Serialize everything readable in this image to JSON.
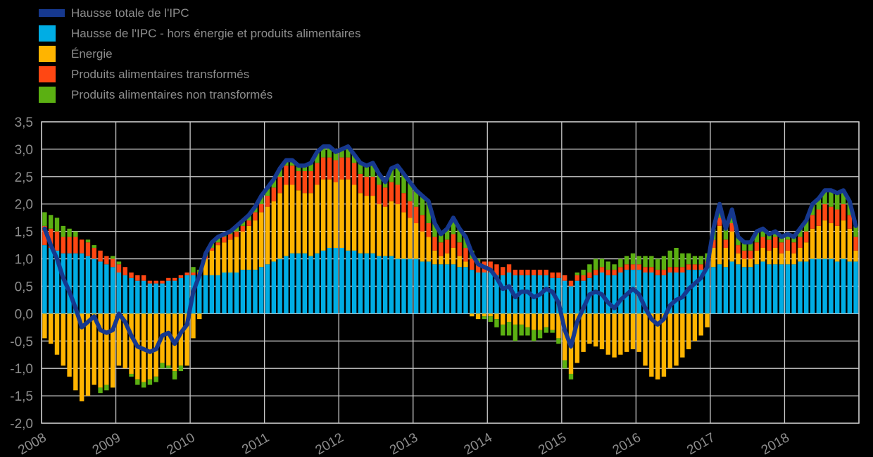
{
  "chart_data": {
    "type": "bar",
    "subtype": "stacked-bars-with-line-overlay",
    "title": "",
    "x_unit": "month",
    "x_range": [
      "2008-01",
      "2018-12"
    ],
    "x_tick_labels": [
      "2008",
      "2009",
      "2010",
      "2011",
      "2012",
      "2013",
      "2014",
      "2015",
      "2016",
      "2017",
      "2018"
    ],
    "y_tick_labels": [
      "3,5",
      "3,0",
      "2,5",
      "2,0",
      "1,5",
      "1,0",
      "0,5",
      "0,0",
      "-0,5",
      "-1,0",
      "-1,5",
      "-2,0"
    ],
    "y_tick_values": [
      3.5,
      3.0,
      2.5,
      2.0,
      1.5,
      1.0,
      0.5,
      0.0,
      -0.5,
      -1.0,
      -1.5,
      -2.0
    ],
    "ylim": [
      -2.0,
      3.5
    ],
    "grid": true,
    "legend_position": "top-left",
    "background": "#000000",
    "grid_color": "#c9c9c9",
    "text_color": "#8d8d8d",
    "series": [
      {
        "name": "Hausse totale de l'IPC",
        "type": "line",
        "color": "#16388E",
        "values": [
          1.55,
          1.25,
          1.0,
          0.65,
          0.4,
          0.1,
          -0.25,
          -0.15,
          -0.05,
          -0.3,
          -0.35,
          -0.3,
          0.0,
          -0.15,
          -0.4,
          -0.6,
          -0.65,
          -0.7,
          -0.65,
          -0.4,
          -0.35,
          -0.55,
          -0.35,
          -0.2,
          0.4,
          0.7,
          1.1,
          1.3,
          1.4,
          1.45,
          1.5,
          1.6,
          1.7,
          1.8,
          1.95,
          2.15,
          2.3,
          2.45,
          2.65,
          2.8,
          2.8,
          2.7,
          2.7,
          2.75,
          2.95,
          3.05,
          3.05,
          2.95,
          3.0,
          3.05,
          2.9,
          2.75,
          2.7,
          2.75,
          2.55,
          2.4,
          2.65,
          2.7,
          2.55,
          2.4,
          2.25,
          2.15,
          2.05,
          1.65,
          1.45,
          1.55,
          1.75,
          1.55,
          1.4,
          1.1,
          0.9,
          0.85,
          0.8,
          0.65,
          0.45,
          0.5,
          0.3,
          0.4,
          0.4,
          0.3,
          0.35,
          0.45,
          0.4,
          0.2,
          -0.3,
          -0.6,
          -0.15,
          0.1,
          0.35,
          0.4,
          0.35,
          0.2,
          0.1,
          0.25,
          0.35,
          0.45,
          0.35,
          0.1,
          -0.1,
          -0.2,
          -0.1,
          0.15,
          0.25,
          0.3,
          0.45,
          0.55,
          0.65,
          0.85,
          1.55,
          2.0,
          1.55,
          1.9,
          1.4,
          1.3,
          1.3,
          1.5,
          1.55,
          1.45,
          1.5,
          1.4,
          1.45,
          1.4,
          1.55,
          1.7,
          2.0,
          2.1,
          2.25,
          2.25,
          2.2,
          2.25,
          2.05,
          1.6
        ]
      },
      {
        "name": "Hausse de l'IPC - hors énergie et produits alimentaires",
        "type": "bar",
        "color": "#00ADE4",
        "values": [
          1.25,
          1.2,
          1.15,
          1.1,
          1.1,
          1.1,
          1.1,
          1.05,
          1.0,
          0.95,
          0.9,
          0.85,
          0.75,
          0.7,
          0.65,
          0.6,
          0.6,
          0.55,
          0.55,
          0.55,
          0.6,
          0.6,
          0.65,
          0.7,
          0.7,
          0.7,
          0.7,
          0.7,
          0.7,
          0.75,
          0.75,
          0.75,
          0.8,
          0.8,
          0.8,
          0.85,
          0.9,
          0.95,
          1.0,
          1.05,
          1.1,
          1.1,
          1.1,
          1.05,
          1.1,
          1.15,
          1.2,
          1.2,
          1.2,
          1.15,
          1.15,
          1.1,
          1.1,
          1.1,
          1.05,
          1.05,
          1.05,
          1.0,
          1.0,
          1.0,
          1.0,
          0.95,
          0.95,
          0.9,
          0.9,
          0.9,
          0.9,
          0.85,
          0.85,
          0.8,
          0.75,
          0.75,
          0.75,
          0.7,
          0.7,
          0.75,
          0.7,
          0.7,
          0.7,
          0.7,
          0.7,
          0.7,
          0.65,
          0.65,
          0.6,
          0.5,
          0.6,
          0.6,
          0.65,
          0.7,
          0.75,
          0.7,
          0.7,
          0.75,
          0.8,
          0.8,
          0.8,
          0.75,
          0.75,
          0.7,
          0.7,
          0.75,
          0.75,
          0.75,
          0.8,
          0.8,
          0.8,
          0.85,
          0.85,
          0.9,
          0.85,
          0.95,
          0.9,
          0.85,
          0.85,
          0.9,
          0.95,
          0.9,
          0.9,
          0.9,
          0.9,
          0.9,
          0.95,
          0.95,
          1.0,
          1.0,
          1.0,
          1.0,
          0.95,
          1.0,
          0.95,
          0.95
        ]
      },
      {
        "name": "Énergie",
        "type": "bar",
        "color": "#FFB400",
        "values": [
          -0.45,
          -0.55,
          -0.75,
          -0.95,
          -1.15,
          -1.4,
          -1.6,
          -1.5,
          -1.3,
          -1.35,
          -1.3,
          -1.35,
          -0.95,
          -1.0,
          -1.1,
          -1.2,
          -1.25,
          -1.2,
          -1.15,
          -0.9,
          -0.95,
          -1.05,
          -0.95,
          -0.95,
          -0.45,
          -0.1,
          0.3,
          0.45,
          0.55,
          0.55,
          0.6,
          0.65,
          0.7,
          0.8,
          0.9,
          1.0,
          1.05,
          1.1,
          1.2,
          1.3,
          1.25,
          1.15,
          1.1,
          1.15,
          1.25,
          1.3,
          1.25,
          1.2,
          1.25,
          1.3,
          1.2,
          1.1,
          1.05,
          1.05,
          0.95,
          0.9,
          1.0,
          1.0,
          0.85,
          0.75,
          0.65,
          0.55,
          0.45,
          0.25,
          0.15,
          0.2,
          0.3,
          0.2,
          0.1,
          -0.05,
          -0.1,
          -0.05,
          -0.05,
          -0.1,
          -0.2,
          -0.15,
          -0.2,
          -0.2,
          -0.25,
          -0.3,
          -0.3,
          -0.25,
          -0.3,
          -0.45,
          -0.85,
          -1.1,
          -0.9,
          -0.7,
          -0.55,
          -0.6,
          -0.65,
          -0.75,
          -0.8,
          -0.75,
          -0.7,
          -0.65,
          -0.7,
          -0.95,
          -1.15,
          -1.2,
          -1.15,
          -1.0,
          -0.95,
          -0.8,
          -0.65,
          -0.5,
          -0.4,
          -0.25,
          0.35,
          0.7,
          0.35,
          0.55,
          0.2,
          0.15,
          0.15,
          0.25,
          0.25,
          0.25,
          0.3,
          0.2,
          0.25,
          0.2,
          0.25,
          0.35,
          0.55,
          0.6,
          0.7,
          0.65,
          0.65,
          0.7,
          0.6,
          0.2
        ]
      },
      {
        "name": "Produits alimentaires transformés",
        "type": "bar",
        "color": "#FF4713",
        "values": [
          0.35,
          0.35,
          0.35,
          0.3,
          0.3,
          0.3,
          0.25,
          0.25,
          0.2,
          0.2,
          0.15,
          0.15,
          0.15,
          0.15,
          0.1,
          0.1,
          0.1,
          0.05,
          0.05,
          0.05,
          0.05,
          0.05,
          0.05,
          0.05,
          0.05,
          0.05,
          0.05,
          0.05,
          0.05,
          0.1,
          0.1,
          0.1,
          0.1,
          0.1,
          0.15,
          0.15,
          0.2,
          0.25,
          0.3,
          0.35,
          0.35,
          0.35,
          0.4,
          0.4,
          0.4,
          0.4,
          0.4,
          0.4,
          0.4,
          0.4,
          0.4,
          0.35,
          0.35,
          0.35,
          0.35,
          0.35,
          0.35,
          0.35,
          0.35,
          0.3,
          0.3,
          0.3,
          0.25,
          0.25,
          0.25,
          0.25,
          0.25,
          0.25,
          0.25,
          0.2,
          0.2,
          0.2,
          0.2,
          0.2,
          0.15,
          0.15,
          0.1,
          0.1,
          0.1,
          0.1,
          0.1,
          0.1,
          0.1,
          0.1,
          0.1,
          0.1,
          0.1,
          0.1,
          0.1,
          0.1,
          0.1,
          0.1,
          0.1,
          0.1,
          0.1,
          0.1,
          0.1,
          0.1,
          0.1,
          0.1,
          0.1,
          0.1,
          0.1,
          0.1,
          0.1,
          0.1,
          0.1,
          0.1,
          0.15,
          0.15,
          0.15,
          0.15,
          0.15,
          0.15,
          0.15,
          0.15,
          0.2,
          0.2,
          0.2,
          0.2,
          0.2,
          0.2,
          0.2,
          0.2,
          0.25,
          0.3,
          0.3,
          0.3,
          0.3,
          0.3,
          0.25,
          0.25
        ]
      },
      {
        "name": "Produits alimentaires non transformés",
        "type": "bar",
        "color": "#5BB012",
        "values": [
          0.25,
          0.25,
          0.25,
          0.2,
          0.15,
          0.1,
          0.0,
          0.05,
          0.05,
          -0.1,
          -0.1,
          0.05,
          0.05,
          0.0,
          -0.05,
          -0.1,
          -0.1,
          -0.1,
          -0.1,
          -0.1,
          -0.05,
          -0.15,
          -0.1,
          0.0,
          0.1,
          0.05,
          0.05,
          0.1,
          0.1,
          0.05,
          0.05,
          0.1,
          0.1,
          0.1,
          0.1,
          0.15,
          0.15,
          0.15,
          0.15,
          0.1,
          0.1,
          0.1,
          0.1,
          0.15,
          0.2,
          0.2,
          0.2,
          0.15,
          0.15,
          0.2,
          0.15,
          0.2,
          0.2,
          0.25,
          0.2,
          0.1,
          0.25,
          0.35,
          0.35,
          0.35,
          0.3,
          0.35,
          0.4,
          0.25,
          0.15,
          0.2,
          0.3,
          0.25,
          0.2,
          0.15,
          0.05,
          -0.05,
          -0.1,
          -0.15,
          -0.2,
          -0.25,
          -0.3,
          -0.2,
          -0.15,
          -0.2,
          -0.15,
          -0.1,
          -0.05,
          -0.1,
          -0.15,
          -0.1,
          0.05,
          0.1,
          0.15,
          0.2,
          0.15,
          0.15,
          0.1,
          0.15,
          0.15,
          0.2,
          0.15,
          0.2,
          0.2,
          0.2,
          0.25,
          0.3,
          0.35,
          0.25,
          0.2,
          0.15,
          0.15,
          0.15,
          0.2,
          0.25,
          0.2,
          0.25,
          0.15,
          0.15,
          0.15,
          0.2,
          0.15,
          0.1,
          0.1,
          0.1,
          0.1,
          0.1,
          0.15,
          0.2,
          0.2,
          0.2,
          0.25,
          0.3,
          0.3,
          0.25,
          0.25,
          0.2
        ]
      }
    ]
  }
}
